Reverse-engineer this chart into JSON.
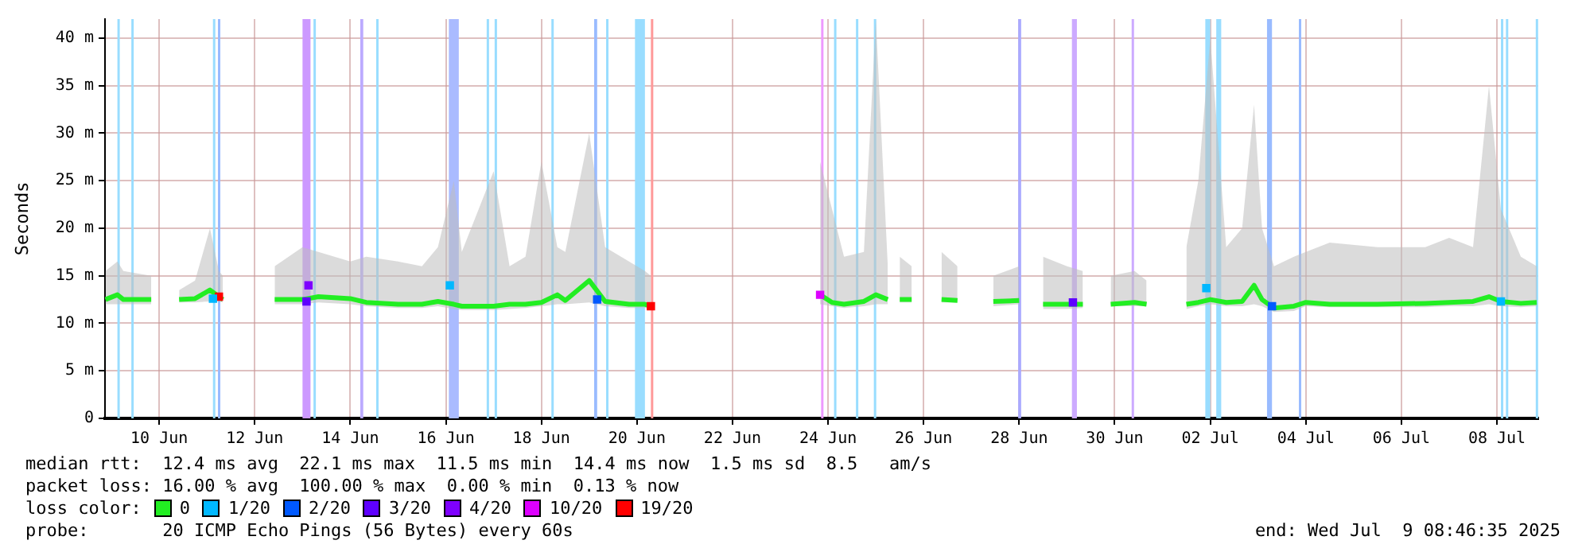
{
  "chart_data": {
    "type": "line",
    "ylabel": "Seconds",
    "legend_title": "loss color:",
    "legend": "bottom",
    "grid": true,
    "xlim": [
      "2025-06-09T08:46",
      "2025-07-09T08:46"
    ],
    "xticks": [
      {
        "value": "2025-06-10T12:00",
        "label": "10 Jun"
      },
      {
        "value": "2025-06-12T12:00",
        "label": "12 Jun"
      },
      {
        "value": "2025-06-14T12:00",
        "label": "14 Jun"
      },
      {
        "value": "2025-06-16T12:00",
        "label": "16 Jun"
      },
      {
        "value": "2025-06-18T12:00",
        "label": "18 Jun"
      },
      {
        "value": "2025-06-20T12:00",
        "label": "20 Jun"
      },
      {
        "value": "2025-06-22T12:00",
        "label": "22 Jun"
      },
      {
        "value": "2025-06-24T12:00",
        "label": "24 Jun"
      },
      {
        "value": "2025-06-26T12:00",
        "label": "26 Jun"
      },
      {
        "value": "2025-06-28T12:00",
        "label": "28 Jun"
      },
      {
        "value": "2025-06-30T12:00",
        "label": "30 Jun"
      },
      {
        "value": "2025-07-02T12:00",
        "label": "02 Jul"
      },
      {
        "value": "2025-07-04T12:00",
        "label": "04 Jul"
      },
      {
        "value": "2025-07-06T12:00",
        "label": "06 Jul"
      },
      {
        "value": "2025-07-08T12:00",
        "label": "08 Jul"
      }
    ],
    "ylim": [
      0,
      42
    ],
    "yticks": [
      0,
      {
        "value": 5,
        "label": "5 m"
      },
      {
        "value": 10,
        "label": "10 m"
      },
      {
        "value": 15,
        "label": "15 m"
      },
      {
        "value": 20,
        "label": "20 m"
      },
      {
        "value": 25,
        "label": "25 m"
      },
      {
        "value": 30,
        "label": "30 m"
      },
      {
        "value": 35,
        "label": "35 m"
      },
      {
        "value": 40,
        "label": "40 m"
      }
    ],
    "series": [
      {
        "name": "0",
        "color": "#22ee22",
        "x": [
          "2025-06-09T09:00",
          "2025-06-09T15:00",
          "2025-06-09T18:00",
          "2025-06-10T08:00",
          "2025-06-10T12:00",
          "2025-06-10T22:00",
          "2025-06-11T06:00",
          "2025-06-11T13:30",
          "2025-06-11T18:00",
          "2025-06-11T20:00",
          "2025-06-12T06:00",
          "2025-06-12T22:00",
          "2025-06-13T12:00",
          "2025-06-13T20:00",
          "2025-06-14T12:00",
          "2025-06-14T20:00",
          "2025-06-15T12:00",
          "2025-06-16T00:00",
          "2025-06-16T08:00",
          "2025-06-16T16:00",
          "2025-06-16T20:00",
          "2025-06-17T12:00",
          "2025-06-17T20:00",
          "2025-06-18T04:00",
          "2025-06-18T12:00",
          "2025-06-18T20:00",
          "2025-06-19T00:00",
          "2025-06-19T12:00",
          "2025-06-19T20:00",
          "2025-06-20T08:00",
          "2025-06-20T16:00",
          "2025-06-20T19:00",
          "2025-06-21T12:00",
          "2025-06-24T08:00",
          "2025-06-24T14:00",
          "2025-06-24T20:00",
          "2025-06-25T06:00",
          "2025-06-25T12:00",
          "2025-06-25T18:00",
          "2025-06-25T21:00",
          "2025-06-26T00:00",
          "2025-06-26T06:00",
          "2025-06-26T12:00",
          "2025-06-26T21:00",
          "2025-06-27T05:00",
          "2025-06-27T12:00",
          "2025-06-27T23:00",
          "2025-06-28T12:00",
          "2025-06-28T18:00",
          "2025-06-29T00:00",
          "2025-06-29T12:00",
          "2025-06-29T20:00",
          "2025-06-30T00:00",
          "2025-06-30T10:00",
          "2025-06-30T22:00",
          "2025-07-01T04:00",
          "2025-07-01T12:00",
          "2025-07-02T00:00",
          "2025-07-02T06:00",
          "2025-07-02T12:00",
          "2025-07-02T20:00",
          "2025-07-03T04:00",
          "2025-07-03T10:00",
          "2025-07-03T14:00",
          "2025-07-03T20:00",
          "2025-07-04T06:00",
          "2025-07-04T12:00",
          "2025-07-05T00:00",
          "2025-07-06T00:00",
          "2025-07-07T00:00",
          "2025-07-07T12:00",
          "2025-07-08T00:00",
          "2025-07-08T08:00",
          "2025-07-08T14:00",
          "2025-07-09T00:00",
          "2025-07-09T08:00"
        ],
        "values": [
          12.5,
          13.0,
          12.5,
          12.5,
          null,
          12.5,
          12.6,
          13.5,
          12.8,
          12.5,
          null,
          12.5,
          12.5,
          12.8,
          12.6,
          12.2,
          12.0,
          12.0,
          12.3,
          12.0,
          11.8,
          11.8,
          12.0,
          12.0,
          12.2,
          13.0,
          12.4,
          14.5,
          12.3,
          12.0,
          12.0,
          11.8,
          null,
          13.0,
          12.2,
          12.0,
          12.3,
          13.0,
          12.5,
          null,
          12.5,
          12.5,
          null,
          12.5,
          12.4,
          null,
          12.3,
          12.4,
          null,
          12.0,
          12.0,
          12.0,
          null,
          12.0,
          12.2,
          12.0,
          null,
          12.0,
          12.2,
          12.5,
          12.2,
          12.3,
          14.0,
          12.5,
          11.6,
          11.8,
          12.2,
          12.0,
          12.0,
          12.1,
          12.2,
          12.3,
          12.8,
          12.3,
          12.1,
          12.2
        ],
        "lower": [
          12.0,
          12.0,
          12.0,
          12.0,
          null,
          12.2,
          12.2,
          12.3,
          12.3,
          12.2,
          null,
          12.0,
          12.0,
          12.2,
          12.0,
          11.8,
          11.6,
          11.6,
          11.8,
          11.5,
          11.4,
          11.4,
          11.5,
          11.6,
          11.8,
          12.0,
          12.0,
          12.2,
          11.8,
          11.6,
          11.6,
          11.5,
          null,
          12.0,
          11.8,
          11.6,
          11.8,
          12.0,
          12.0,
          null,
          12.2,
          12.2,
          null,
          12.2,
          12.2,
          null,
          11.8,
          12.0,
          null,
          11.5,
          11.5,
          11.6,
          null,
          11.8,
          11.8,
          11.8,
          null,
          11.5,
          11.8,
          12.0,
          11.8,
          11.8,
          12.0,
          11.8,
          11.2,
          11.3,
          11.8,
          11.7,
          11.7,
          11.7,
          11.8,
          11.8,
          12.0,
          11.8,
          11.7,
          11.8
        ],
        "upper": [
          15.5,
          16.5,
          15.5,
          15.0,
          null,
          13.5,
          14.5,
          20.0,
          15.5,
          15.0,
          null,
          16.0,
          18.0,
          17.5,
          16.5,
          17.0,
          16.5,
          16.0,
          18.0,
          25.0,
          17.5,
          26.0,
          16.0,
          17.0,
          27.0,
          18.0,
          17.5,
          30.0,
          18.0,
          16.5,
          15.5,
          15.0,
          null,
          27.0,
          22.0,
          17.0,
          17.5,
          42.0,
          16.0,
          null,
          17.0,
          16.0,
          null,
          17.5,
          16.0,
          null,
          15.0,
          16.0,
          null,
          17.0,
          16.0,
          15.5,
          null,
          15.0,
          15.5,
          14.5,
          null,
          18.0,
          25.0,
          40.0,
          18.0,
          20.0,
          33.0,
          20.0,
          16.0,
          17.0,
          17.5,
          18.5,
          18.0,
          18.0,
          19.0,
          18.0,
          35.0,
          22.0,
          17.0,
          16.0
        ]
      },
      {
        "name": "1/20",
        "type": "scatter",
        "marker": "square",
        "color": "#00b8ff",
        "x": [
          "2025-06-11T15:00",
          "2025-06-16T14:00",
          "2025-07-02T10:00",
          "2025-07-08T14:00"
        ],
        "values": [
          12.6,
          14.0,
          13.7,
          12.3
        ]
      },
      {
        "name": "2/20",
        "type": "scatter",
        "marker": "square",
        "color": "#0059ff",
        "x": [
          "2025-06-19T16:00",
          "2025-07-03T19:00"
        ],
        "values": [
          12.5,
          11.8
        ]
      },
      {
        "name": "3/20",
        "type": "scatter",
        "marker": "square",
        "color": "#5e00ff",
        "x": [
          "2025-06-13T14:00",
          "2025-06-29T15:00"
        ],
        "values": [
          12.3,
          12.2
        ]
      },
      {
        "name": "4/20",
        "type": "scatter",
        "marker": "square",
        "color": "#7e00ff",
        "x": [
          "2025-06-13T15:00"
        ],
        "values": [
          14.0
        ]
      },
      {
        "name": "10/20",
        "type": "scatter",
        "marker": "square",
        "color": "#dd00ff",
        "x": [
          "2025-06-24T08:00"
        ],
        "values": [
          13.0
        ]
      },
      {
        "name": "19/20",
        "type": "scatter",
        "marker": "square",
        "color": "#ff0000",
        "x": [
          "2025-06-11T18:00",
          "2025-06-20T19:00"
        ],
        "values": [
          12.8,
          11.8
        ]
      }
    ],
    "bands": [
      {
        "axis": "x",
        "from": "2025-06-09T15:00",
        "to": "2025-06-09T15:50",
        "color": "#99ddff"
      },
      {
        "axis": "x",
        "from": "2025-06-09T22:00",
        "to": "2025-06-09T22:50",
        "color": "#99ddff"
      },
      {
        "axis": "x",
        "from": "2025-06-11T15:00",
        "to": "2025-06-11T16:00",
        "color": "#99ddff"
      },
      {
        "axis": "x",
        "from": "2025-06-11T17:30",
        "to": "2025-06-11T18:30",
        "color": "#99bbff"
      },
      {
        "axis": "x",
        "from": "2025-06-13T12:00",
        "to": "2025-06-13T16:00",
        "color": "#cc99ff"
      },
      {
        "axis": "x",
        "from": "2025-06-13T17:30",
        "to": "2025-06-13T18:30",
        "color": "#99ddff"
      },
      {
        "axis": "x",
        "from": "2025-06-14T17:00",
        "to": "2025-06-14T18:30",
        "color": "#bbaaff"
      },
      {
        "axis": "x",
        "from": "2025-06-15T01:00",
        "to": "2025-06-15T02:00",
        "color": "#99ddff"
      },
      {
        "axis": "x",
        "from": "2025-06-16T13:30",
        "to": "2025-06-16T18:30",
        "color": "#aabbff"
      },
      {
        "axis": "x",
        "from": "2025-06-17T08:30",
        "to": "2025-06-17T09:30",
        "color": "#99ddff"
      },
      {
        "axis": "x",
        "from": "2025-06-17T12:30",
        "to": "2025-06-17T13:30",
        "color": "#99ddff"
      },
      {
        "axis": "x",
        "from": "2025-06-18T17:00",
        "to": "2025-06-18T18:00",
        "color": "#99ddff"
      },
      {
        "axis": "x",
        "from": "2025-06-19T14:30",
        "to": "2025-06-19T16:00",
        "color": "#99bbff"
      },
      {
        "axis": "x",
        "from": "2025-06-19T20:30",
        "to": "2025-06-19T21:30",
        "color": "#99ddff"
      },
      {
        "axis": "x",
        "from": "2025-06-20T11:00",
        "to": "2025-06-20T16:00",
        "color": "#99ddff"
      },
      {
        "axis": "x",
        "from": "2025-06-20T19:00",
        "to": "2025-06-20T20:00",
        "color": "#ff9999"
      },
      {
        "axis": "x",
        "from": "2025-06-24T08:30",
        "to": "2025-06-24T09:30",
        "color": "#ee99ff"
      },
      {
        "axis": "x",
        "from": "2025-06-24T15:00",
        "to": "2025-06-24T16:00",
        "color": "#99ddff"
      },
      {
        "axis": "x",
        "from": "2025-06-25T02:00",
        "to": "2025-06-25T03:00",
        "color": "#99ddff"
      },
      {
        "axis": "x",
        "from": "2025-06-25T11:00",
        "to": "2025-06-25T12:00",
        "color": "#99ddff"
      },
      {
        "axis": "x",
        "from": "2025-06-28T11:30",
        "to": "2025-06-28T13:00",
        "color": "#aaaaff"
      },
      {
        "axis": "x",
        "from": "2025-06-29T14:30",
        "to": "2025-06-29T17:00",
        "color": "#ccaaff"
      },
      {
        "axis": "x",
        "from": "2025-06-30T20:30",
        "to": "2025-06-30T21:30",
        "color": "#ccaaff"
      },
      {
        "axis": "x",
        "from": "2025-07-02T09:30",
        "to": "2025-07-02T12:00",
        "color": "#99ddff"
      },
      {
        "axis": "x",
        "from": "2025-07-02T15:00",
        "to": "2025-07-02T17:30",
        "color": "#99ddff"
      },
      {
        "axis": "x",
        "from": "2025-07-03T16:30",
        "to": "2025-07-03T19:00",
        "color": "#99bbff"
      },
      {
        "axis": "x",
        "from": "2025-07-04T08:30",
        "to": "2025-07-04T09:30",
        "color": "#99bbff"
      },
      {
        "axis": "x",
        "from": "2025-07-08T14:00",
        "to": "2025-07-08T15:00",
        "color": "#99ddff"
      },
      {
        "axis": "x",
        "from": "2025-07-08T16:30",
        "to": "2025-07-08T17:30",
        "color": "#99ddff"
      },
      {
        "axis": "x",
        "from": "2025-07-09T07:30",
        "to": "2025-07-09T08:30",
        "color": "#99ddff"
      }
    ],
    "annotations": [
      "median rtt:  12.4 ms avg  22.1 ms max  11.5 ms min  14.4 ms now  1.5 ms sd  8.5   am/s",
      "packet loss: 16.00 % avg  100.00 % max  0.00 % min  0.13 % now",
      "probe:       20 ICMP Echo Pings (56 Bytes) every 60s",
      "end: Wed Jul  9 08:46:35 2025"
    ]
  }
}
